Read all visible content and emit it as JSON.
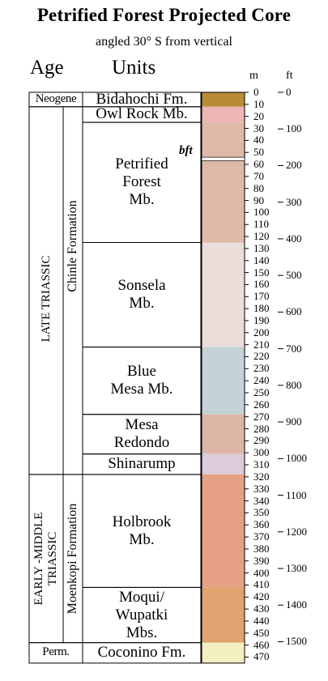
{
  "title": "Petrified Forest Projected Core",
  "subtitle": "angled 30° S from vertical",
  "headers": {
    "age": "Age",
    "units": "Units",
    "m": "m",
    "ft": "ft"
  },
  "ages": [
    {
      "id": "neogene",
      "label": "Neogene",
      "top_m": 0,
      "bottom_m": 12
    },
    {
      "id": "late-triassic",
      "label": "LATE TRIASSIC",
      "top_m": 12,
      "bottom_m": 318
    },
    {
      "id": "early-middle-triassic",
      "label": "EARLY -MIDDLE TRIASSIC",
      "top_m": 318,
      "bottom_m": 458
    },
    {
      "id": "permian",
      "label": "Perm.",
      "top_m": 458,
      "bottom_m": 475
    }
  ],
  "formations": [
    {
      "id": "chinle",
      "label": "Chinle Formation",
      "top_m": 12,
      "bottom_m": 318
    },
    {
      "id": "moenkopi",
      "label": "Moenkopi Formation",
      "top_m": 318,
      "bottom_m": 458
    }
  ],
  "units": [
    {
      "id": "bidahochi",
      "label": "Bidahochi Fm.",
      "top_m": 0,
      "bottom_m": 12,
      "color": "#B88C37"
    },
    {
      "id": "owl-rock",
      "label": "Owl Rock Mb.",
      "top_m": 12,
      "bottom_m": 25,
      "color": "#EDB5B3"
    },
    {
      "id": "petrified-forest",
      "label": "Petrified Forest Mb.",
      "top_m": 25,
      "bottom_m": 125,
      "color": "#DFB9A8"
    },
    {
      "id": "sonsela",
      "label": "Sonsela Mb.",
      "top_m": 125,
      "bottom_m": 212,
      "color": "#EBDDDA"
    },
    {
      "id": "blue-mesa",
      "label": "Blue Mesa Mb.",
      "top_m": 212,
      "bottom_m": 268,
      "color": "#C4D3D8"
    },
    {
      "id": "mesa-redondo",
      "label": "Mesa Redondo",
      "top_m": 268,
      "bottom_m": 301,
      "color": "#DCB7A7"
    },
    {
      "id": "shinarump",
      "label": "Shinarump",
      "top_m": 301,
      "bottom_m": 318,
      "color": "#DCCCDA"
    },
    {
      "id": "holbrook",
      "label": "Holbrook Mb.",
      "top_m": 318,
      "bottom_m": 412,
      "color": "#E6A185"
    },
    {
      "id": "moqui-wupatki",
      "label": "Moqui/ Wupatki Mbs.",
      "top_m": 412,
      "bottom_m": 458,
      "color": "#DFA36F"
    },
    {
      "id": "coconino",
      "label": "Coconino Fm.",
      "top_m": 458,
      "bottom_m": 475,
      "color": "#F4EFC0"
    }
  ],
  "bft": {
    "label": "bft",
    "top_m": 54,
    "bottom_m": 57,
    "color": "#FFFFFF"
  },
  "m_ticks": [
    0,
    10,
    20,
    30,
    40,
    50,
    60,
    70,
    80,
    90,
    100,
    110,
    120,
    130,
    140,
    150,
    160,
    170,
    180,
    190,
    200,
    210,
    220,
    230,
    240,
    250,
    260,
    270,
    280,
    290,
    300,
    310,
    320,
    330,
    340,
    350,
    360,
    370,
    380,
    390,
    400,
    410,
    420,
    430,
    440,
    450,
    460,
    470
  ],
  "ft_ticks": [
    0,
    100,
    200,
    300,
    400,
    500,
    600,
    700,
    800,
    900,
    1000,
    1100,
    1200,
    1300,
    1400,
    1500
  ]
}
